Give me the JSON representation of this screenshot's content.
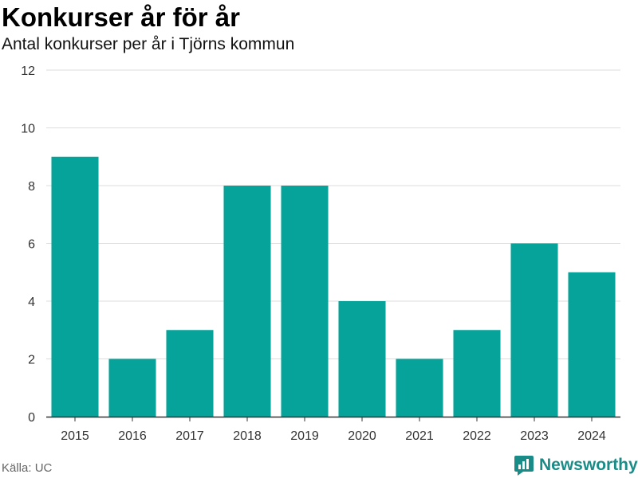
{
  "header": {
    "title": "Konkurser år för år",
    "subtitle": "Antal konkurser per år i Tjörns kommun"
  },
  "footer": {
    "source": "Källa: UC",
    "brand": "Newsworthy",
    "brand_icon": "newsworthy-logo-icon"
  },
  "colors": {
    "bar": "#05a39a",
    "grid": "#dddddd",
    "axis": "#333333",
    "brand": "#1a8c87"
  },
  "chart_data": {
    "type": "bar",
    "title": "Konkurser år för år",
    "subtitle": "Antal konkurser per år i Tjörns kommun",
    "categories": [
      "2015",
      "2016",
      "2017",
      "2018",
      "2019",
      "2020",
      "2021",
      "2022",
      "2023",
      "2024"
    ],
    "values": [
      9,
      2,
      3,
      8,
      8,
      4,
      2,
      3,
      6,
      5
    ],
    "ylim": [
      0,
      12
    ],
    "yticks": [
      0,
      2,
      4,
      6,
      8,
      10,
      12
    ],
    "grid": true,
    "legend": "none"
  }
}
